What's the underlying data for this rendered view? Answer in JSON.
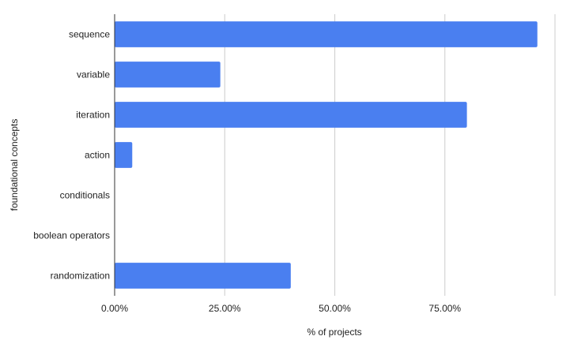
{
  "chart_data": {
    "type": "bar",
    "orientation": "horizontal",
    "title": "",
    "xlabel": "% of projects",
    "ylabel": "foundational concepts",
    "categories": [
      "sequence",
      "variable",
      "iteration",
      "action",
      "conditionals",
      "boolean operators",
      "randomization"
    ],
    "series": [
      {
        "values": [
          0.96,
          0.24,
          0.8,
          0.04,
          0.0,
          0.0,
          0.4
        ]
      }
    ],
    "xlim": [
      0,
      1
    ],
    "xticks": [
      0,
      0.25,
      0.5,
      0.75
    ],
    "xtick_labels": [
      "0.00%",
      "25.00%",
      "50.00%",
      "75.00%"
    ],
    "grid": "vertical",
    "legend": "none",
    "colors": {
      "bar": "#4a7ff0",
      "grid": "#cccccc",
      "axis": "#333333"
    }
  }
}
